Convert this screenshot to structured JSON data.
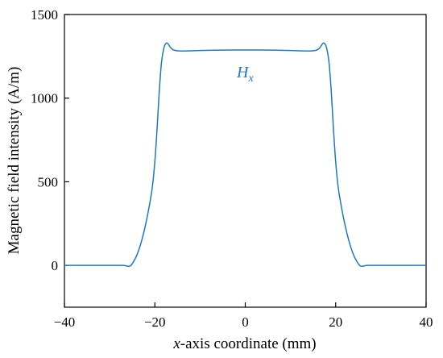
{
  "chart_data": {
    "type": "line",
    "title": "",
    "xlabel_italic": "x",
    "xlabel_rest": "-axis coordinate (mm)",
    "ylabel": "Magnetic field intensity (A/m)",
    "xlim": [
      -40,
      40
    ],
    "ylim": [
      -250,
      1500
    ],
    "xticks": [
      -40,
      -20,
      0,
      20,
      40
    ],
    "yticks": [
      0,
      500,
      1000,
      1500
    ],
    "grid": false,
    "series": [
      {
        "label_main": "H",
        "label_sub": "x",
        "color": "#1f77c4",
        "x": [
          -40,
          -30,
          -27,
          -26,
          -25.5,
          -25,
          -24,
          -23,
          -22,
          -21,
          -20.5,
          -20,
          -19.5,
          -19,
          -18.5,
          -18,
          -17.6,
          -17.3,
          -17,
          -16.6,
          -16,
          -15,
          -14,
          -12,
          -10,
          -5,
          0,
          5,
          10,
          12,
          14,
          15,
          16,
          16.6,
          17,
          17.3,
          17.6,
          18,
          18.5,
          19,
          19.5,
          20,
          20.5,
          21,
          22,
          23,
          24,
          25,
          25.5,
          26,
          27,
          30,
          40
        ],
        "y": [
          0,
          0,
          0,
          -5,
          -4,
          10,
          60,
          140,
          250,
          390,
          480,
          620,
          820,
          1050,
          1220,
          1300,
          1325,
          1330,
          1322,
          1305,
          1290,
          1283,
          1282,
          1283,
          1285,
          1287,
          1288,
          1287,
          1285,
          1283,
          1282,
          1283,
          1290,
          1305,
          1322,
          1330,
          1325,
          1300,
          1220,
          1050,
          820,
          620,
          480,
          390,
          250,
          140,
          60,
          10,
          -4,
          -5,
          0,
          0,
          0
        ]
      }
    ]
  }
}
